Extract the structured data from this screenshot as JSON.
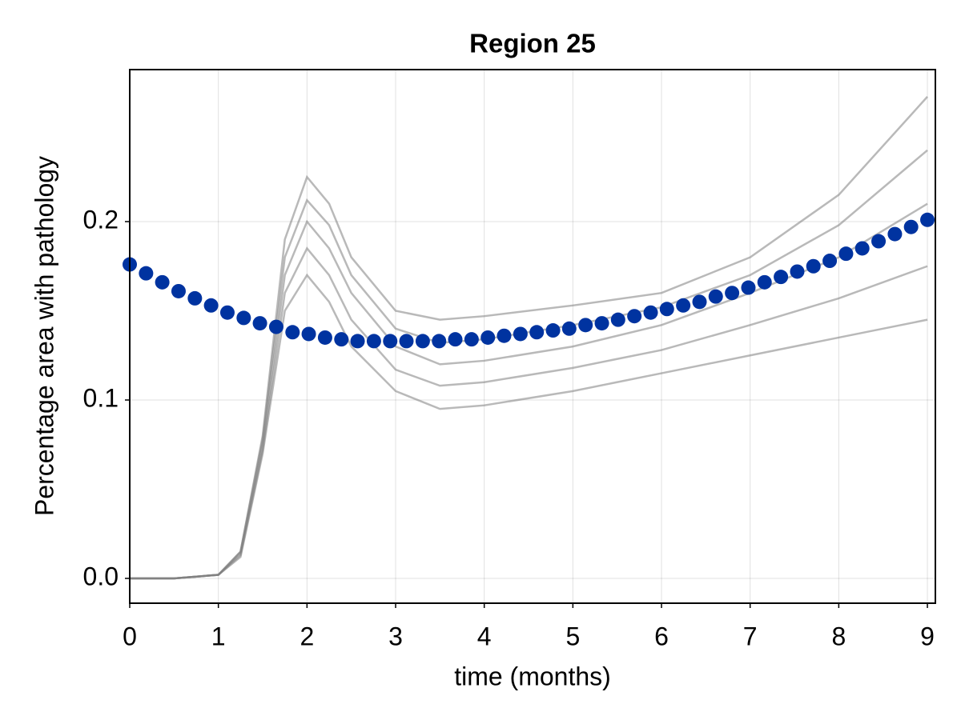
{
  "chart_data": {
    "type": "line",
    "title": "Region 25",
    "x_label": "time (months)",
    "y_label": "Percentage area with pathology",
    "xlim": [
      0,
      9.09
    ],
    "ylim": [
      -0.0139,
      0.2852
    ],
    "xticks": [
      0,
      1,
      2,
      3,
      4,
      5,
      6,
      7,
      8,
      9
    ],
    "yticks": [
      {
        "value": 0,
        "label": "0.0"
      },
      0.1,
      0.2
    ],
    "grid": true,
    "x": [
      0,
      0.5,
      1,
      1.25,
      1.5,
      1.75,
      2,
      2.25,
      2.5,
      3,
      3.5,
      4,
      5,
      6,
      7,
      8,
      9
    ],
    "series": [
      {
        "color": "#808080",
        "values": [
          0,
          0,
          0.002,
          0.015,
          0.08,
          0.19,
          0.225,
          0.21,
          0.18,
          0.15,
          0.145,
          0.147,
          0.153,
          0.16,
          0.18,
          0.215,
          0.27
        ]
      },
      {
        "color": "#808080",
        "values": [
          0,
          0,
          0.002,
          0.015,
          0.078,
          0.18,
          0.212,
          0.198,
          0.17,
          0.14,
          0.132,
          0.134,
          0.142,
          0.152,
          0.17,
          0.198,
          0.24
        ]
      },
      {
        "color": "#808080",
        "values": [
          0,
          0,
          0.002,
          0.014,
          0.075,
          0.17,
          0.2,
          0.185,
          0.16,
          0.13,
          0.12,
          0.122,
          0.13,
          0.142,
          0.16,
          0.18,
          0.21
        ]
      },
      {
        "color": "#808080",
        "values": [
          0,
          0,
          0.002,
          0.013,
          0.072,
          0.16,
          0.185,
          0.17,
          0.145,
          0.117,
          0.108,
          0.11,
          0.118,
          0.128,
          0.142,
          0.157,
          0.175
        ]
      },
      {
        "color": "#808080",
        "values": [
          0,
          0,
          0.002,
          0.012,
          0.07,
          0.15,
          0.17,
          0.155,
          0.13,
          0.105,
          0.095,
          0.097,
          0.105,
          0.115,
          0.125,
          0.135,
          0.145
        ]
      }
    ],
    "points": {
      "color": "#0033a0",
      "x": [
        0,
        0.184,
        0.367,
        0.551,
        0.735,
        0.918,
        1.102,
        1.286,
        1.469,
        1.653,
        1.837,
        2.02,
        2.204,
        2.388,
        2.571,
        2.755,
        2.939,
        3.122,
        3.306,
        3.49,
        3.673,
        3.857,
        4.041,
        4.224,
        4.408,
        4.592,
        4.776,
        4.959,
        5.143,
        5.327,
        5.51,
        5.694,
        5.878,
        6.061,
        6.245,
        6.429,
        6.612,
        6.796,
        6.98,
        7.163,
        7.347,
        7.531,
        7.714,
        7.898,
        8.082,
        8.265,
        8.449,
        8.633,
        8.816,
        9
      ],
      "values": [
        0.176,
        0.171,
        0.166,
        0.161,
        0.157,
        0.153,
        0.149,
        0.146,
        0.143,
        0.141,
        0.138,
        0.137,
        0.135,
        0.134,
        0.133,
        0.133,
        0.133,
        0.133,
        0.133,
        0.133,
        0.134,
        0.134,
        0.135,
        0.136,
        0.137,
        0.138,
        0.139,
        0.14,
        0.142,
        0.143,
        0.145,
        0.147,
        0.149,
        0.151,
        0.153,
        0.155,
        0.158,
        0.16,
        0.163,
        0.166,
        0.169,
        0.172,
        0.175,
        0.178,
        0.182,
        0.185,
        0.189,
        0.193,
        0.197,
        0.201
      ]
    }
  }
}
